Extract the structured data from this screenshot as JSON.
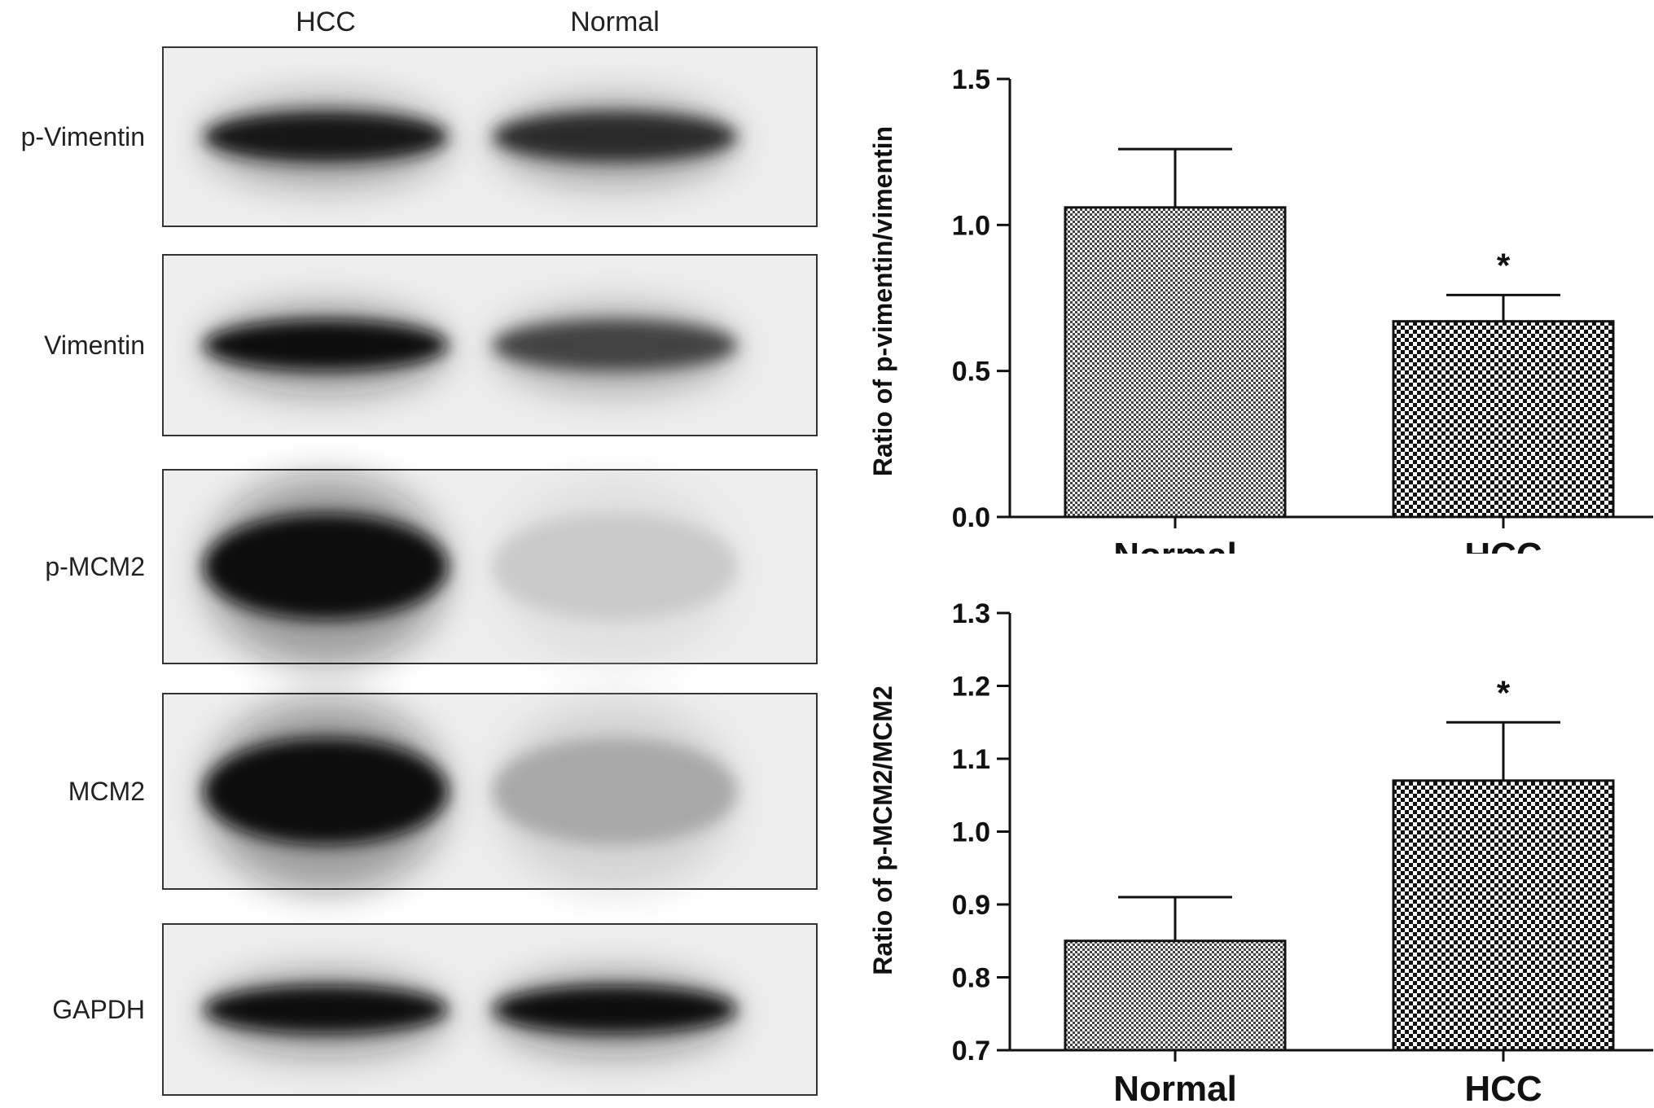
{
  "blot": {
    "lanes": [
      "HCC",
      "Normal"
    ],
    "rows": [
      {
        "label": "p-Vimentin",
        "intensity": [
          0.95,
          0.85
        ]
      },
      {
        "label": "Vimentin",
        "intensity": [
          1.0,
          0.75
        ]
      },
      {
        "label": "p-MCM2",
        "intensity": [
          1.0,
          0.15
        ]
      },
      {
        "label": "MCM2",
        "intensity": [
          1.0,
          0.3
        ]
      },
      {
        "label": "GAPDH",
        "intensity": [
          1.0,
          1.0
        ]
      }
    ]
  },
  "chart_data": [
    {
      "type": "bar",
      "categories": [
        "Normal",
        "HCC"
      ],
      "values": [
        1.06,
        0.67
      ],
      "errors": [
        0.2,
        0.09
      ],
      "annotations": [
        "",
        "*"
      ],
      "title": "",
      "xlabel": "",
      "ylabel": "Ratio of p-vimentin/vimentin",
      "ylim": [
        0.0,
        1.5
      ],
      "yticks": [
        "0.0",
        "0.5",
        "1.0",
        "1.5"
      ]
    },
    {
      "type": "bar",
      "categories": [
        "Normal",
        "HCC"
      ],
      "values": [
        0.85,
        1.07
      ],
      "errors": [
        0.06,
        0.08
      ],
      "annotations": [
        "",
        "*"
      ],
      "title": "",
      "xlabel": "",
      "ylabel": "Ratio of p-MCM2/MCM2",
      "ylim": [
        0.7,
        1.3
      ],
      "yticks": [
        "0.7",
        "0.8",
        "0.9",
        "1.0",
        "1.1",
        "1.2",
        "1.3"
      ]
    }
  ]
}
